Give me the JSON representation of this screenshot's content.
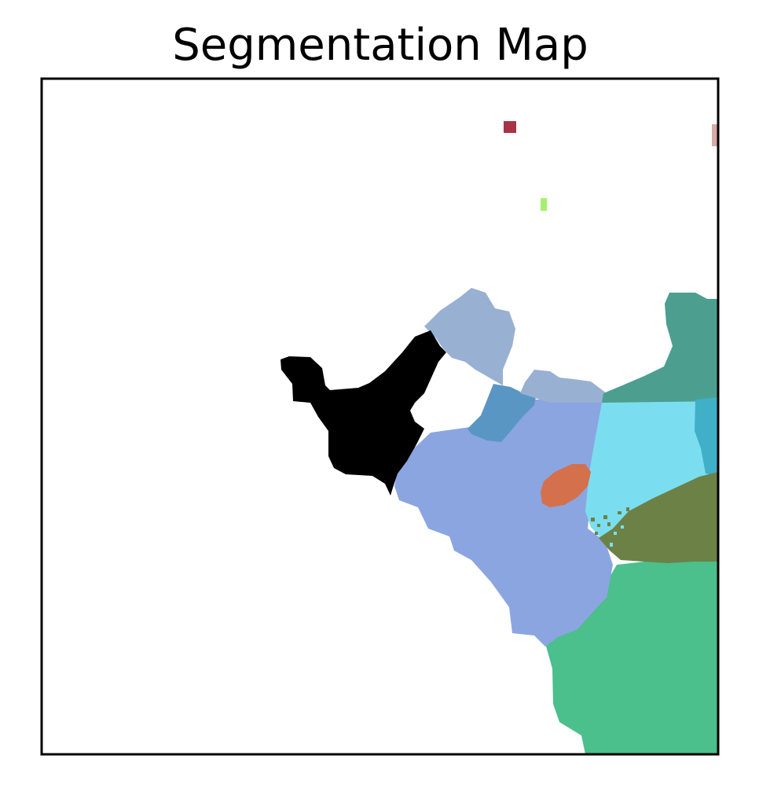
{
  "chart_data": {
    "type": "heatmap",
    "title": "Segmentation Map",
    "xlabel": "",
    "ylabel": "",
    "axis_ticks": "none",
    "grid": false,
    "legend": "none",
    "background_color": "#ffffff",
    "frame_color": "#000000",
    "segments": [
      {
        "id": "black-region",
        "color": "#000000"
      },
      {
        "id": "steel-blue-top",
        "color": "#98b0d2"
      },
      {
        "id": "medium-blue",
        "color": "#5a96c3"
      },
      {
        "id": "periwinkle",
        "color": "#8ba5e1"
      },
      {
        "id": "orange-blob",
        "color": "#d4704b"
      },
      {
        "id": "cyan",
        "color": "#7bdef0"
      },
      {
        "id": "teal-blue",
        "color": "#40afc8"
      },
      {
        "id": "teal-green",
        "color": "#4c9f8e"
      },
      {
        "id": "olive",
        "color": "#6c8146"
      },
      {
        "id": "green",
        "color": "#4bbf8c"
      },
      {
        "id": "dark-red-speck",
        "color": "#a83246"
      },
      {
        "id": "light-green-speck",
        "color": "#a5f06e"
      },
      {
        "id": "pink-edge-speck",
        "color": "#d7aaa5"
      }
    ]
  }
}
